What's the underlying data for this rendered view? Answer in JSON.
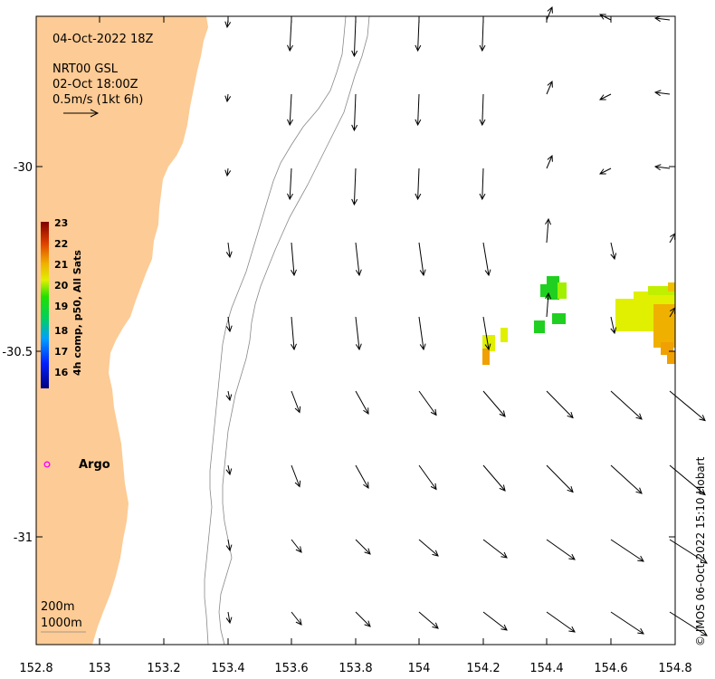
{
  "header": {
    "date": "04-Oct-2022 18Z",
    "source_line1": "NRT00 GSL",
    "source_line2": "02-Oct 18:00Z",
    "scale_label": "0.5m/s (1kt 6h)"
  },
  "x_axis": {
    "ticks": [
      "152.8",
      "153",
      "153.2",
      "153.4",
      "153.6",
      "153.8",
      "154",
      "154.2",
      "154.4",
      "154.6",
      "154.8"
    ]
  },
  "y_axis": {
    "ticks": [
      "-30",
      "-30.5",
      "-31"
    ]
  },
  "colorbar": {
    "label": "4h comp, p50, All Sats",
    "ticks": [
      "23",
      "22",
      "21",
      "20",
      "19",
      "18",
      "17",
      "16"
    ]
  },
  "argo": {
    "label": "Argo",
    "color": "#ff00ff"
  },
  "bathymetry": {
    "contour_1": "200m",
    "contour_2": "1000m"
  },
  "credit": "© IMOS 06-Oct-2022 15:10 Hobart",
  "colors": {
    "land": "#fdcb95",
    "sst_warm": "#f0a000",
    "sst_mid": "#e0f000",
    "sst_cool": "#20d020"
  },
  "chart_data": {
    "type": "map",
    "xlim": [
      152.8,
      154.8
    ],
    "ylim": [
      -31.3,
      -29.6
    ],
    "scale_vector": {
      "speed_mps": 0.5
    }
  }
}
